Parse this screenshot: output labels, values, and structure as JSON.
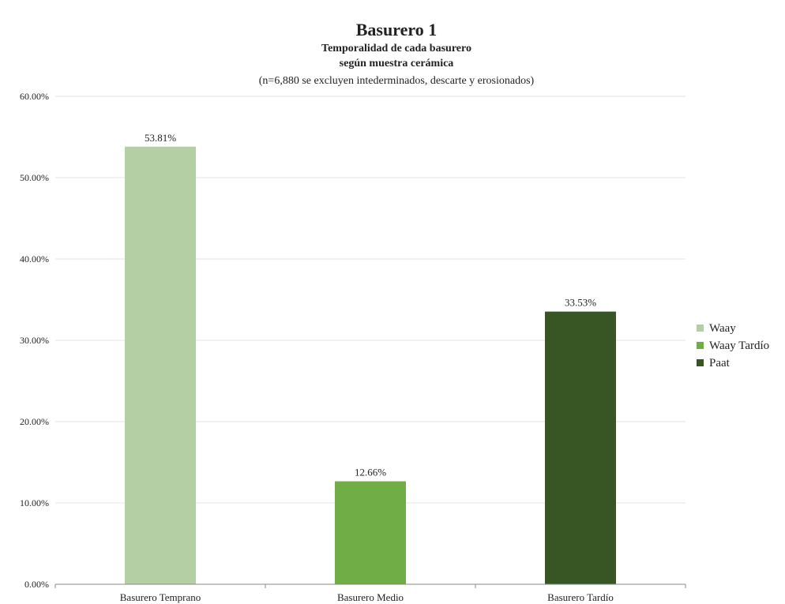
{
  "chart_data": {
    "type": "bar",
    "title": "Basurero 1",
    "subtitle_lines": [
      "Temporalidad de cada basurero",
      "según muestra cerámica"
    ],
    "note": "(n=6,880 se excluyen intederminados, descarte y erosionados)",
    "categories": [
      "Basurero Temprano",
      "Basurero Medio",
      "Basurero Tardío"
    ],
    "series": [
      {
        "name": "Waay",
        "color": "#b3cfa3",
        "values": [
          53.81,
          null,
          null
        ],
        "labels": [
          "53.81%",
          "",
          ""
        ]
      },
      {
        "name": "Waay Tardío",
        "color": "#70ad47",
        "values": [
          null,
          12.66,
          null
        ],
        "labels": [
          "",
          "12.66%",
          ""
        ]
      },
      {
        "name": "Paat",
        "color": "#375623",
        "values": [
          null,
          null,
          33.53
        ],
        "labels": [
          "",
          "",
          "33.53%"
        ]
      }
    ],
    "yticks": [
      "0.00%",
      "10.00%",
      "20.00%",
      "30.00%",
      "40.00%",
      "50.00%",
      "60.00%"
    ],
    "ylim": [
      0,
      60
    ],
    "grid": true,
    "legend_position": "right",
    "colors": {
      "grid": "#e3e3e3",
      "axis": "#888888"
    }
  }
}
